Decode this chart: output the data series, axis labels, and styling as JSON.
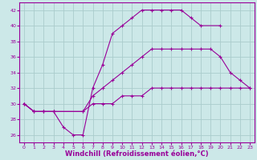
{
  "bg_color": "#cce8e8",
  "grid_color": "#aacccc",
  "line_color": "#990099",
  "marker": "+",
  "xlabel": "Windchill (Refroidissement éolien,°C)",
  "xlabel_fontsize": 6.0,
  "xlim": [
    -0.5,
    23.5
  ],
  "ylim": [
    25,
    43
  ],
  "yticks": [
    26,
    28,
    30,
    32,
    34,
    36,
    38,
    40,
    42
  ],
  "xticks": [
    0,
    1,
    2,
    3,
    4,
    5,
    6,
    7,
    8,
    9,
    10,
    11,
    12,
    13,
    14,
    15,
    16,
    17,
    18,
    19,
    20,
    21,
    22,
    23
  ],
  "line1_x": [
    0,
    1,
    2,
    3,
    4,
    5,
    6,
    7,
    8,
    9,
    10,
    11,
    12,
    13,
    14,
    15,
    16,
    17,
    18,
    20
  ],
  "line1_y": [
    30,
    29,
    29,
    29,
    27,
    26,
    26,
    32,
    35,
    39,
    40,
    41,
    42,
    42,
    42,
    42,
    42,
    41,
    40,
    40
  ],
  "line2_x": [
    0,
    1,
    2,
    3,
    6,
    7,
    8,
    9,
    10,
    11,
    12,
    13,
    14,
    15,
    16,
    17,
    18,
    19,
    20,
    21,
    22,
    23
  ],
  "line2_y": [
    30,
    29,
    29,
    29,
    29,
    31,
    32,
    33,
    34,
    35,
    36,
    37,
    37,
    37,
    37,
    37,
    37,
    37,
    36,
    34,
    33,
    32
  ],
  "line3_x": [
    0,
    1,
    2,
    3,
    6,
    7,
    8,
    9,
    10,
    11,
    12,
    13,
    14,
    15,
    16,
    17,
    18,
    19,
    20,
    21,
    22,
    23
  ],
  "line3_y": [
    30,
    29,
    29,
    29,
    29,
    30,
    30,
    30,
    31,
    31,
    31,
    32,
    32,
    32,
    32,
    32,
    32,
    32,
    32,
    32,
    32,
    32
  ]
}
